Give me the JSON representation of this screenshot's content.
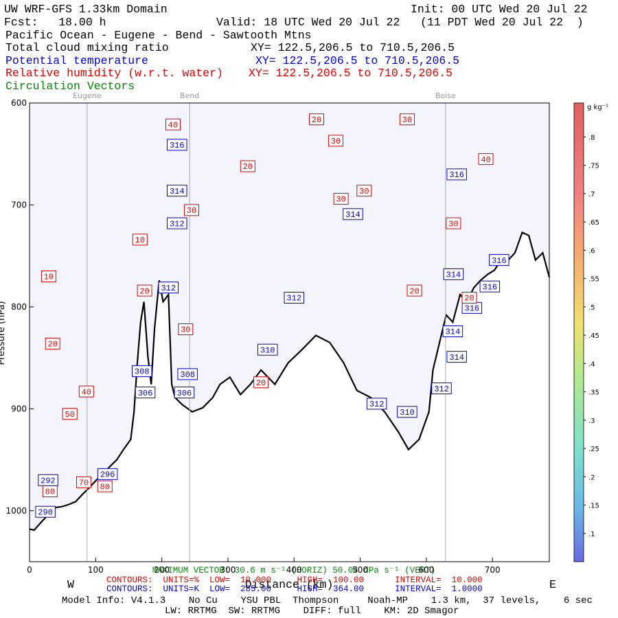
{
  "chart_data": {
    "type": "cross-section",
    "title": "UW WRF-GFS 1.33km Domain",
    "init": "Init: 00 UTC Wed 20 Jul 22",
    "forecast": "Fcst:   18.00 h",
    "valid": "Valid: 18 UTC Wed 20 Jul 22   (11 PDT Wed 20 Jul 22  )",
    "subtitle": "Pacific Ocean - Eugene - Bend - Sawtooth Mtns",
    "fields": [
      {
        "name": "Total cloud mixing ratio",
        "xy": "XY= 122.5,206.5 to 710.5,206.5",
        "color": "#000000"
      },
      {
        "name": "Potential temperature",
        "xy": "XY= 122.5,206.5 to 710.5,206.5",
        "color": "#0000cc"
      },
      {
        "name": "Relative humidity (w.r.t. water)",
        "xy": "XY= 122.5,206.5 to 710.5,206.5",
        "color": "#dd0000"
      },
      {
        "name": "Circulation Vectors",
        "color": "#008800"
      }
    ],
    "x_label": "Distance (km)",
    "y_label": "Pressure (hPa)",
    "west": "W",
    "east": "E",
    "xlim": [
      0,
      786
    ],
    "xticks": [
      0,
      100,
      200,
      300,
      400,
      500,
      600,
      700
    ],
    "ylim": [
      600,
      1050
    ],
    "yticks": [
      600,
      700,
      800,
      900,
      1000
    ],
    "invert_y": true,
    "locations": [
      {
        "name": "Eugene",
        "x": 87
      },
      {
        "name": "Bend",
        "x": 242
      },
      {
        "name": "Boise",
        "x": 629
      }
    ],
    "terrain": {
      "color": "#000000",
      "x": [
        0,
        7,
        18,
        28,
        38,
        49,
        59,
        70,
        80,
        91,
        101,
        111,
        121,
        132,
        142,
        153,
        158,
        163,
        168,
        173,
        179,
        184,
        189,
        196,
        202,
        210,
        215,
        220,
        231,
        246,
        262,
        277,
        288,
        303,
        319,
        334,
        350,
        371,
        391,
        412,
        433,
        454,
        475,
        495,
        516,
        537,
        558,
        573,
        589,
        604,
        610,
        620,
        630,
        640,
        651,
        661,
        672,
        682,
        693,
        703,
        713,
        724,
        734,
        745,
        755,
        765,
        776,
        786
      ],
      "values": [
        1018,
        1019,
        1011,
        1004,
        997,
        996,
        994,
        991,
        984,
        977,
        970,
        964,
        957,
        950,
        940,
        930,
        903,
        855,
        815,
        795,
        849,
        876,
        822,
        774,
        795,
        788,
        876,
        889,
        896,
        903,
        899,
        889,
        876,
        869,
        886,
        876,
        862,
        876,
        855,
        842,
        828,
        835,
        855,
        882,
        889,
        903,
        923,
        940,
        930,
        903,
        862,
        835,
        808,
        815,
        788,
        795,
        781,
        774,
        768,
        764,
        754,
        754,
        747,
        727,
        730,
        754,
        747,
        771
      ]
    },
    "contour_labels": [
      {
        "name": "Potential temperature",
        "color": "#0000cc",
        "values": [
          316,
          314,
          312,
          312,
          312,
          310,
          308,
          308,
          306,
          306,
          312,
          310,
          314,
          316,
          314,
          316,
          316,
          316,
          314,
          314,
          312,
          296,
          292,
          290
        ],
        "x": [
          223,
          223,
          223,
          210,
          400,
          360,
          170,
          239,
          175,
          234,
          525,
          571,
          489,
          646,
          641,
          710,
          696,
          669,
          640,
          646,
          623,
          118,
          28,
          24
        ],
        "y": [
          641,
          686,
          718,
          781,
          791,
          842,
          863,
          866,
          884,
          884,
          895,
          903,
          709,
          670,
          768,
          754,
          780,
          801,
          824,
          849,
          880,
          964,
          970,
          1001
        ]
      },
      {
        "name": "Relative humidity (w.r.t. water)",
        "color": "#dd0000",
        "values": [
          40,
          20,
          30,
          30,
          20,
          40,
          30,
          30,
          30,
          10,
          30,
          10,
          20,
          20,
          20,
          30,
          20,
          20,
          40,
          50,
          70,
          80,
          80
        ],
        "x": [
          217,
          434,
          571,
          463,
          330,
          690,
          245,
          506,
          471,
          167,
          641,
          29,
          174,
          582,
          665,
          236,
          35,
          350,
          86,
          61,
          82,
          114,
          31
        ],
        "y": [
          621,
          616,
          616,
          637,
          662,
          655,
          705,
          686,
          694,
          734,
          718,
          770,
          784,
          784,
          791,
          822,
          836,
          874,
          883,
          905,
          972,
          976,
          981
        ]
      }
    ],
    "colorbar": {
      "units": "g kg⁻¹",
      "lim": [
        0.05,
        0.86
      ],
      "ticks": [
        {
          "value": 0.8,
          "label": ".8"
        },
        {
          "value": 0.75,
          "label": ".75"
        },
        {
          "value": 0.7,
          "label": ".7"
        },
        {
          "value": 0.65,
          "label": ".65"
        },
        {
          "value": 0.6,
          "label": ".6"
        },
        {
          "value": 0.55,
          "label": ".55"
        },
        {
          "value": 0.5,
          "label": ".5"
        },
        {
          "value": 0.45,
          "label": ".45"
        },
        {
          "value": 0.4,
          "label": ".4"
        },
        {
          "value": 0.35,
          "label": ".35"
        },
        {
          "value": 0.3,
          "label": ".3"
        },
        {
          "value": 0.25,
          "label": ".25"
        },
        {
          "value": 0.2,
          "label": ".2"
        },
        {
          "value": 0.15,
          "label": ".15"
        },
        {
          "value": 0.1,
          "label": ".1"
        }
      ]
    },
    "footer": {
      "max_vector": "MAXIMUM VECTOR: 30.6 m s⁻¹ (HORIZ)   50.04 dPa s⁻¹ (VERT)",
      "contours_rh": "CONTOURS:  UNITS=%  LOW=  10.000     HIGH=  100.00      INTERVAL=  10.000",
      "contours_theta": "CONTOURS:  UNITS=K  LOW=  285.00     HIGH=  364.00      INTERVAL=  1.0000",
      "model_info": "Model Info: V4.1.3    No Cu    YSU PBL  Thompson     Noah-MP    1.3 km,  37 levels,    6 sec",
      "physics": "LW: RRTMG  SW: RRTMG    DIFF: full    KM: 2D Smagor"
    }
  }
}
